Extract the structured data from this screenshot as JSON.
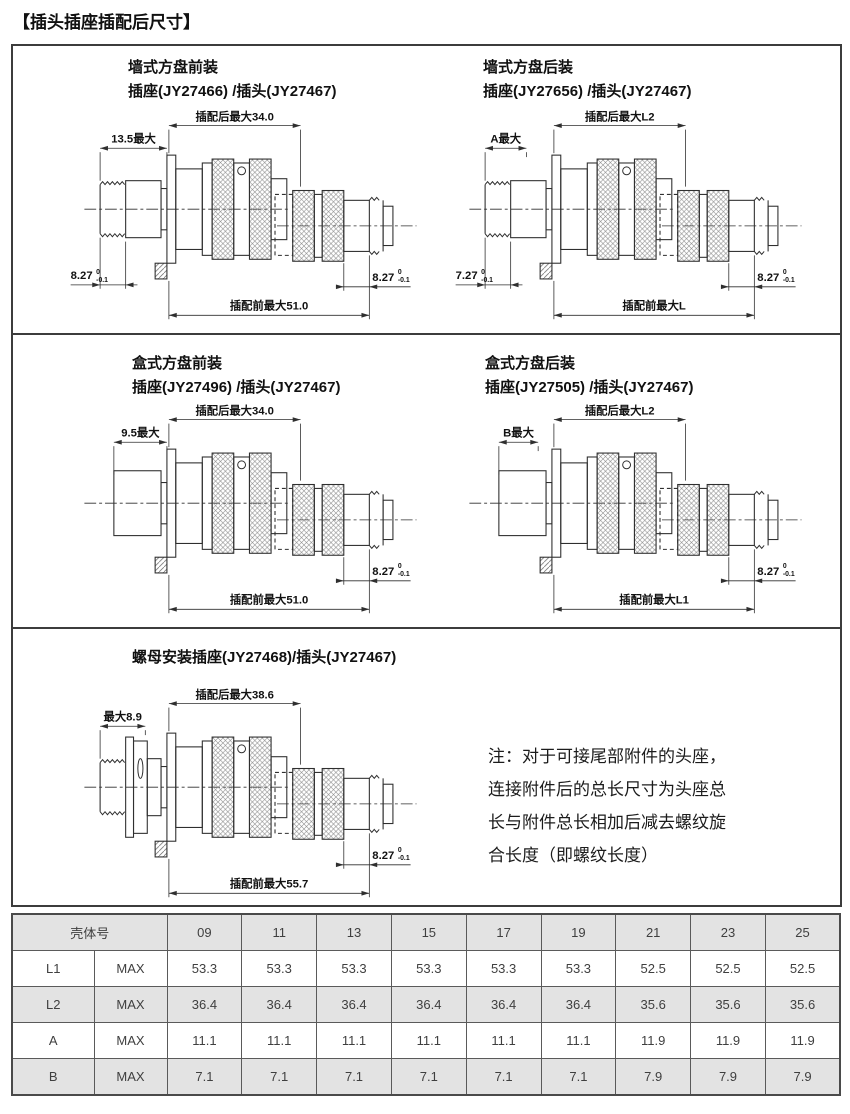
{
  "page": {
    "title": "【插头插座插配后尺寸】"
  },
  "diagrams": {
    "wall_front": {
      "title1": "墙式方盘前装",
      "title2": "插座(JY27466) /插头(JY27467)",
      "dim_after": "插配后最大34.0",
      "dim_flange": "13.5最大",
      "dim_left": "8.27",
      "dim_left_tol_hi": "0",
      "dim_left_tol_lo": "-0.1",
      "dim_right": "8.27",
      "dim_right_tol_hi": "0",
      "dim_right_tol_lo": "-0.1",
      "dim_before": "插配前最大51.0"
    },
    "wall_rear": {
      "title1": "墙式方盘后装",
      "title2": "插座(JY27656) /插头(JY27467)",
      "dim_after": "插配后最大L2",
      "dim_flange": "A最大",
      "dim_left": "7.27",
      "dim_left_tol_hi": "0",
      "dim_left_tol_lo": "-0.1",
      "dim_right": "8.27",
      "dim_right_tol_hi": "0",
      "dim_right_tol_lo": "-0.1",
      "dim_before": "插配前最大L"
    },
    "box_front": {
      "title1": "盒式方盘前装",
      "title2": "插座(JY27496) /插头(JY27467)",
      "dim_after": "插配后最大34.0",
      "dim_flange": "9.5最大",
      "dim_right": "8.27",
      "dim_right_tol_hi": "0",
      "dim_right_tol_lo": "-0.1",
      "dim_before": "插配前最大51.0"
    },
    "box_rear": {
      "title1": "盒式方盘后装",
      "title2": "插座(JY27505) /插头(JY27467)",
      "dim_after": "插配后最大L2",
      "dim_flange": "B最大",
      "dim_right": "8.27",
      "dim_right_tol_hi": "0",
      "dim_right_tol_lo": "-0.1",
      "dim_before": "插配前最大L1"
    },
    "nut": {
      "title1": "螺母安装插座(JY27468)/插头(JY27467)",
      "dim_after": "插配后最大38.6",
      "dim_flange": "最大8.9",
      "dim_right": "8.27",
      "dim_right_tol_hi": "0",
      "dim_right_tol_lo": "-0.1",
      "dim_before": "插配前最大55.7"
    }
  },
  "note": {
    "lines": [
      "注：对于可接尾部附件的头座，",
      "连接附件后的总长尺寸为头座总",
      "长与附件总长相加后减去螺纹旋",
      "合长度（即螺纹长度）"
    ]
  },
  "table": {
    "header_label": "壳体号",
    "shell_sizes": [
      "09",
      "11",
      "13",
      "15",
      "17",
      "19",
      "21",
      "23",
      "25"
    ],
    "rows": [
      {
        "param": "L1",
        "qual": "MAX",
        "values": [
          "53.3",
          "53.3",
          "53.3",
          "53.3",
          "53.3",
          "53.3",
          "52.5",
          "52.5",
          "52.5"
        ]
      },
      {
        "param": "L2",
        "qual": "MAX",
        "values": [
          "36.4",
          "36.4",
          "36.4",
          "36.4",
          "36.4",
          "36.4",
          "35.6",
          "35.6",
          "35.6"
        ]
      },
      {
        "param": "A",
        "qual": "MAX",
        "values": [
          "11.1",
          "11.1",
          "11.1",
          "11.1",
          "11.1",
          "11.1",
          "11.9",
          "11.9",
          "11.9"
        ]
      },
      {
        "param": "B",
        "qual": "MAX",
        "values": [
          "7.1",
          "7.1",
          "7.1",
          "7.1",
          "7.1",
          "7.1",
          "7.9",
          "7.9",
          "7.9"
        ]
      }
    ]
  }
}
